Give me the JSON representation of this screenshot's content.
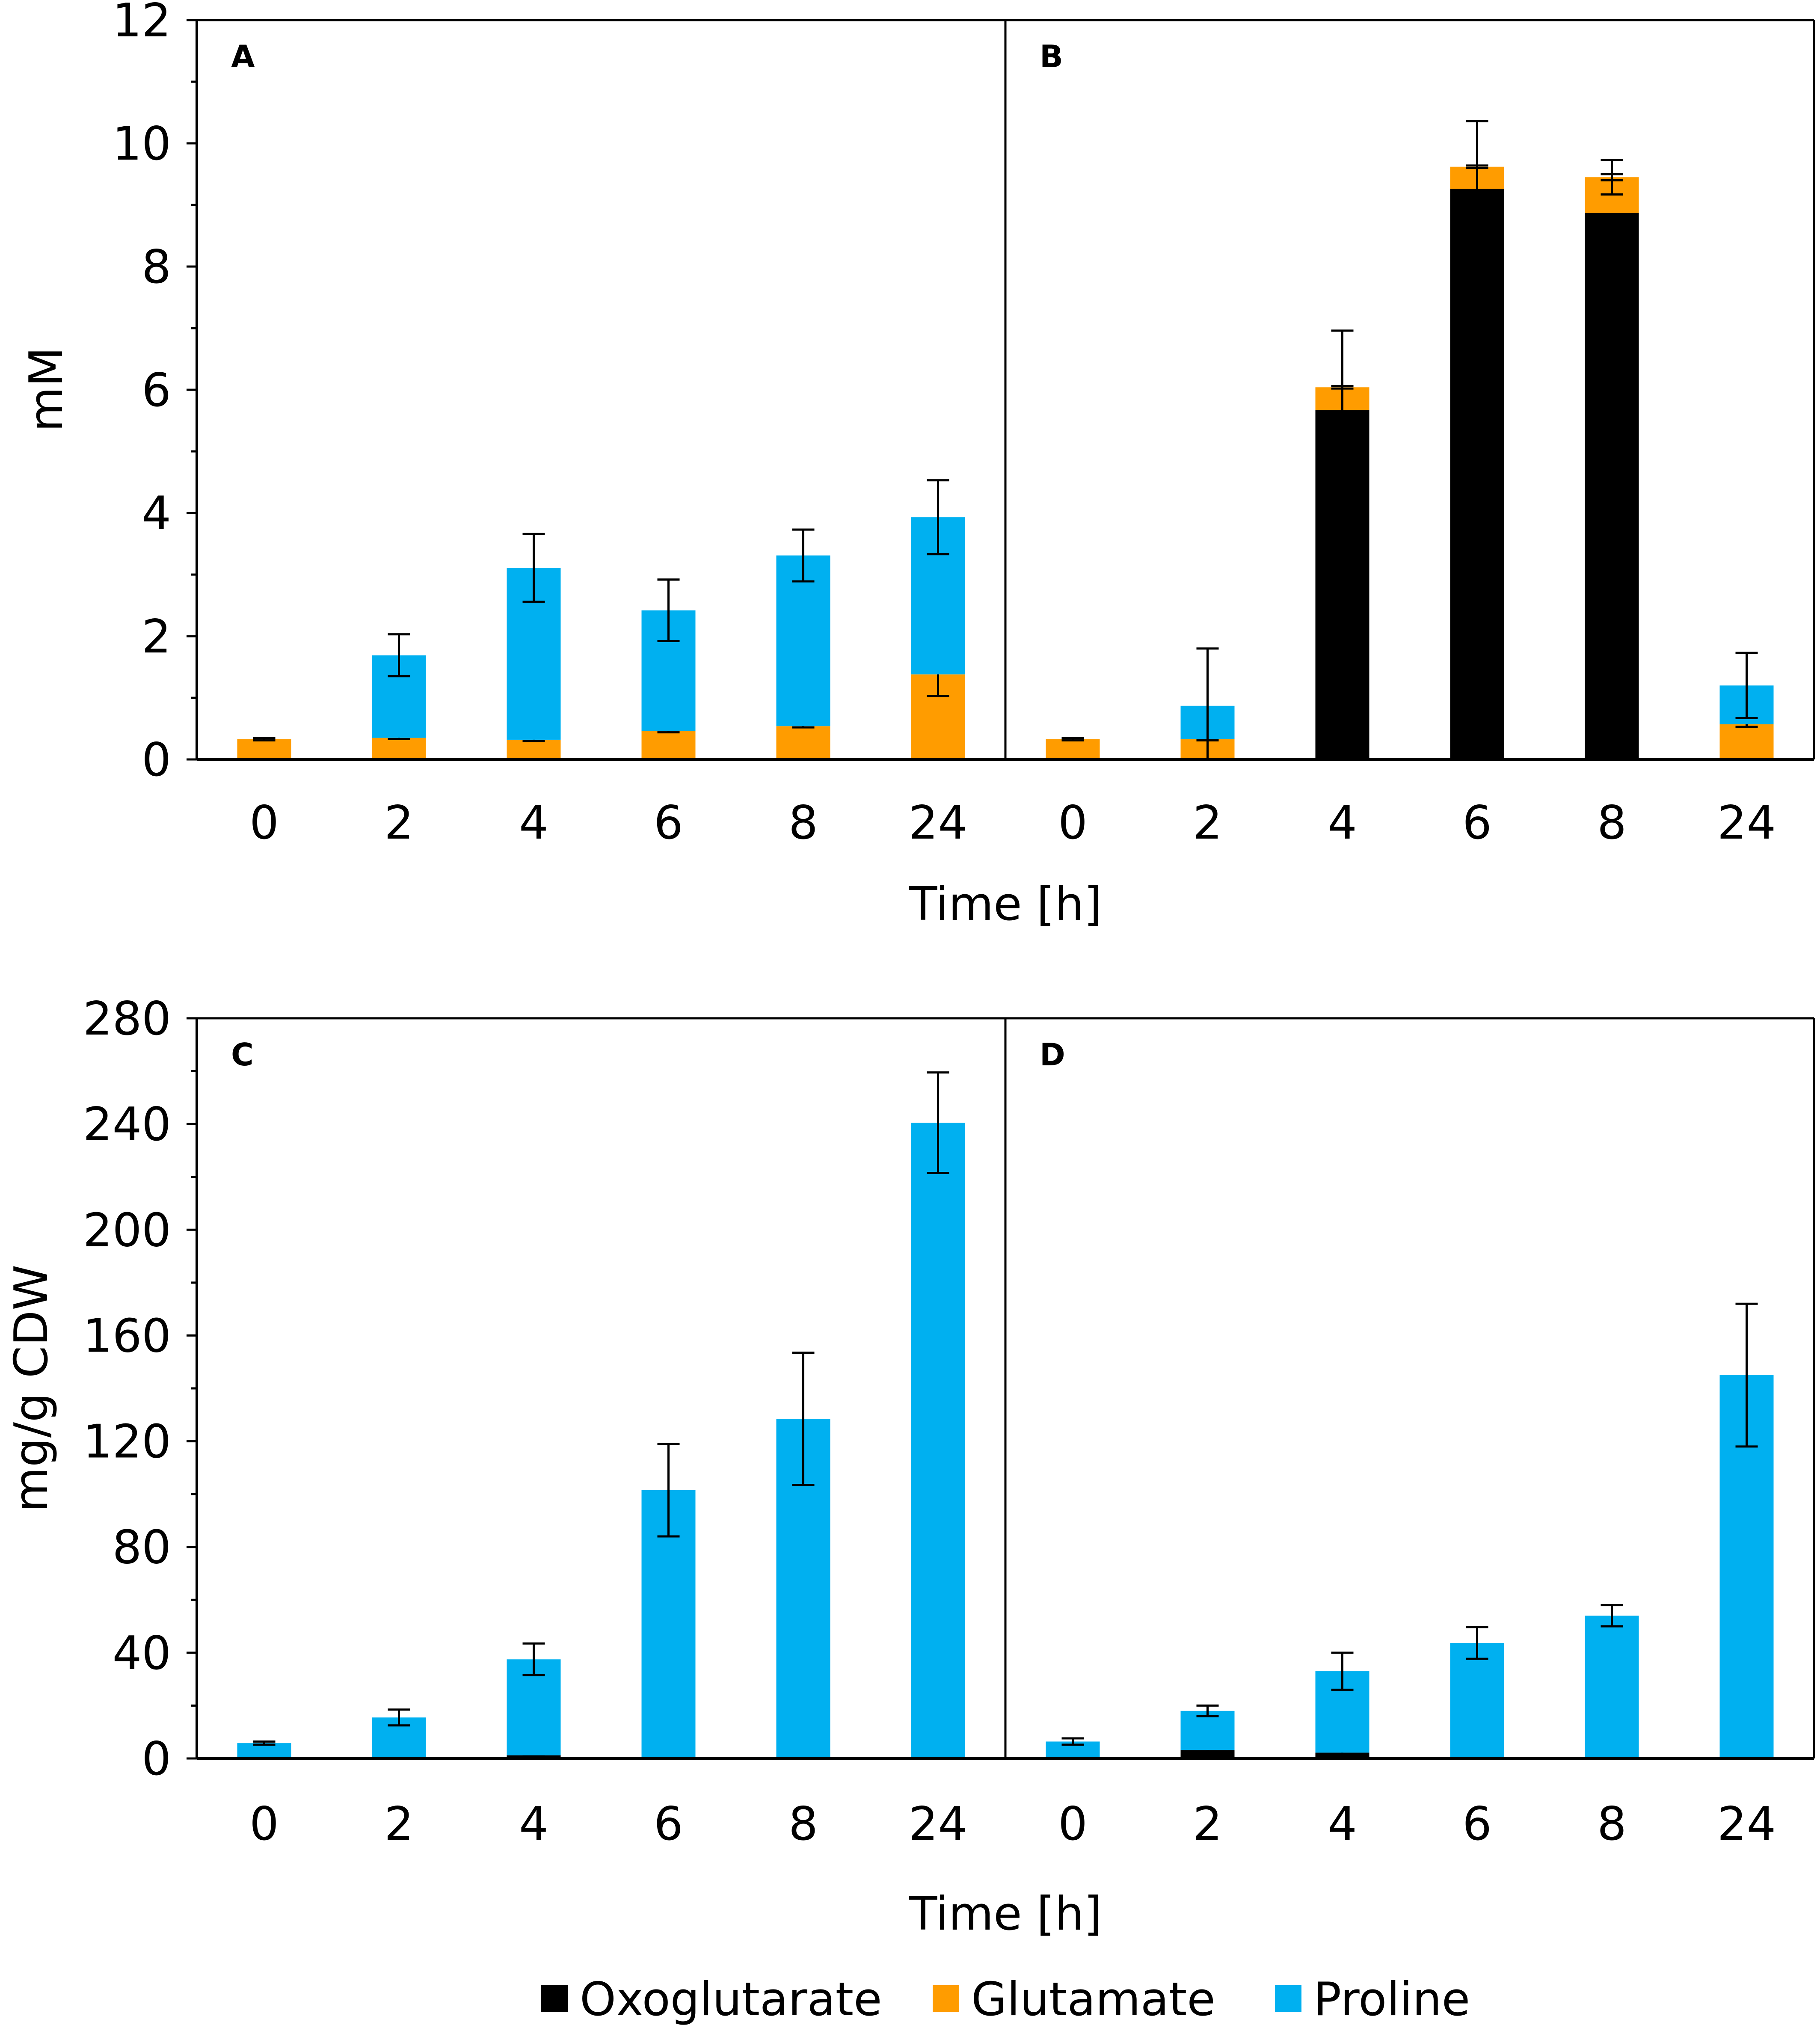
{
  "colors": {
    "oxoglutarate": "#000000",
    "glutamate": "#ff9c00",
    "proline": "#00b0f0"
  },
  "legend": [
    {
      "key": "oxoglutarate",
      "label": "Oxoglutarate"
    },
    {
      "key": "glutamate",
      "label": "Glutamate"
    },
    {
      "key": "proline",
      "label": "Proline"
    }
  ],
  "chart_data": [
    {
      "type": "bar",
      "stacked": true,
      "panels": [
        "A",
        "B"
      ],
      "ylabel": "mM",
      "xlabel": "Time [h]",
      "ylim": [
        0,
        12
      ],
      "yticks": [
        "0",
        "2",
        "4",
        "6",
        "8",
        "10",
        "12"
      ],
      "categories": [
        "0",
        "2",
        "4",
        "6",
        "8",
        "24"
      ],
      "panel_data": [
        {
          "letter": "A",
          "series": [
            {
              "name": "Oxoglutarate",
              "key": "oxoglutarate",
              "values": [
                0,
                0,
                0,
                0,
                0,
                0
              ],
              "errors": [
                0,
                0,
                0,
                0,
                0,
                0
              ]
            },
            {
              "name": "Glutamate",
              "key": "glutamate",
              "values": [
                0.33,
                0.35,
                0.32,
                0.46,
                0.54,
                1.38
              ],
              "errors": [
                0.02,
                0.02,
                0.02,
                0.02,
                0.02,
                0.35
              ]
            },
            {
              "name": "Proline",
              "key": "proline",
              "values": [
                0,
                1.34,
                2.79,
                1.96,
                2.77,
                2.55
              ],
              "errors": [
                0,
                0.34,
                0.55,
                0.5,
                0.42,
                0.6
              ]
            }
          ]
        },
        {
          "letter": "B",
          "series": [
            {
              "name": "Oxoglutarate",
              "key": "oxoglutarate",
              "values": [
                0,
                0,
                5.67,
                9.26,
                8.87,
                0
              ],
              "errors": [
                0,
                0,
                0,
                0,
                0,
                0
              ]
            },
            {
              "name": "Glutamate",
              "key": "glutamate",
              "values": [
                0.33,
                0.33,
                0.37,
                0.36,
                0.58,
                0.57
              ],
              "errors": [
                0.02,
                0.02,
                0.02,
                0.02,
                0.05,
                0.04
              ]
            },
            {
              "name": "Proline",
              "key": "proline",
              "values": [
                0,
                0.54,
                0,
                0,
                0,
                0.63
              ],
              "errors": [
                0,
                0.93,
                0.92,
                0.74,
                0.28,
                0.53
              ]
            }
          ]
        }
      ]
    },
    {
      "type": "bar",
      "stacked": true,
      "panels": [
        "C",
        "D"
      ],
      "ylabel": "mg/g CDW",
      "xlabel": "Time [h]",
      "ylim": [
        0,
        280
      ],
      "yticks": [
        "0",
        "40",
        "80",
        "120",
        "160",
        "200",
        "240",
        "280"
      ],
      "categories": [
        "0",
        "2",
        "4",
        "6",
        "8",
        "24"
      ],
      "panel_data": [
        {
          "letter": "C",
          "series": [
            {
              "name": "Oxoglutarate",
              "key": "oxoglutarate",
              "values": [
                0,
                0.3,
                1.2,
                0.2,
                0.2,
                0.4
              ],
              "errors": [
                0,
                0,
                0.3,
                0,
                0,
                0
              ]
            },
            {
              "name": "Glutamate",
              "key": "glutamate",
              "values": [
                0,
                0,
                0,
                0,
                0,
                0
              ],
              "errors": [
                0,
                0,
                0,
                0,
                0,
                0
              ]
            },
            {
              "name": "Proline",
              "key": "proline",
              "values": [
                5.8,
                15.2,
                36.3,
                101.3,
                128.3,
                240.1
              ],
              "errors": [
                0.6,
                3,
                6,
                17.5,
                25,
                19
              ]
            }
          ]
        },
        {
          "letter": "D",
          "series": [
            {
              "name": "Oxoglutarate",
              "key": "oxoglutarate",
              "values": [
                0,
                3.2,
                2.2,
                0,
                0,
                0
              ],
              "errors": [
                0,
                0.6,
                0.6,
                0,
                0,
                0
              ]
            },
            {
              "name": "Glutamate",
              "key": "glutamate",
              "values": [
                0,
                0,
                0,
                0,
                0,
                0
              ],
              "errors": [
                0,
                0,
                0,
                0,
                0,
                0
              ]
            },
            {
              "name": "Proline",
              "key": "proline",
              "values": [
                6.4,
                14.8,
                30.8,
                43.7,
                54,
                145
              ],
              "errors": [
                1.2,
                2,
                7,
                6,
                4,
                27
              ]
            }
          ]
        }
      ]
    }
  ]
}
